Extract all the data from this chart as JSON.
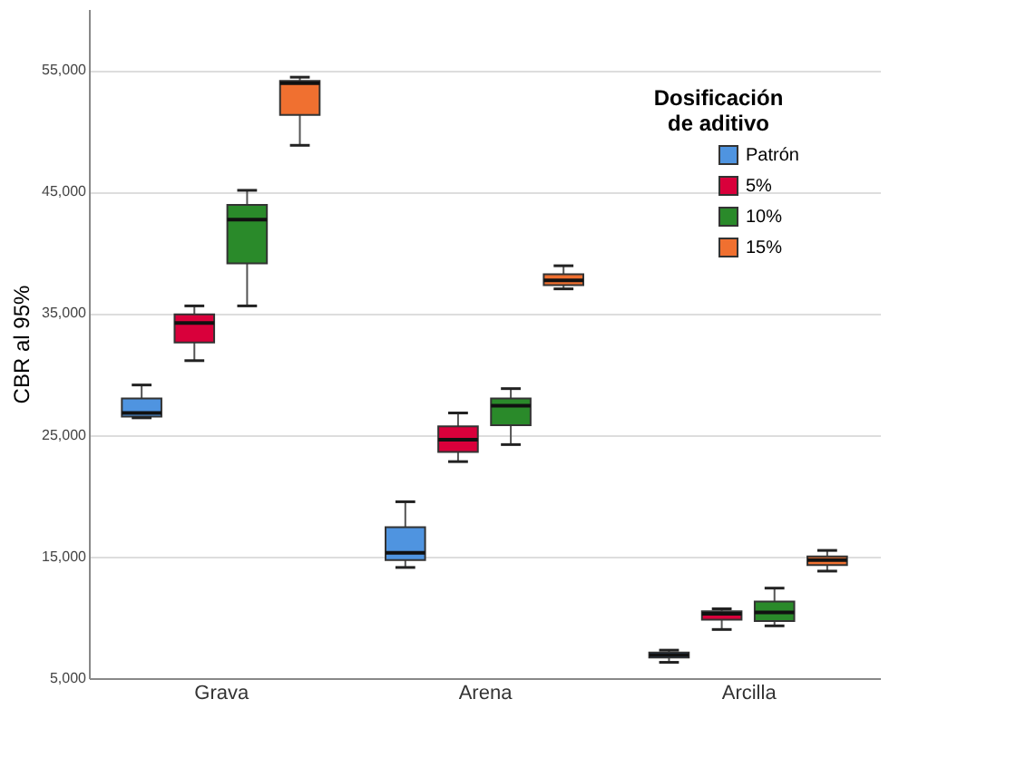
{
  "chart_data": {
    "type": "box",
    "ylabel": "CBR al 95%",
    "legend_title": "Dosificación de aditivo",
    "categories": [
      "Grava",
      "Arena",
      "Arcilla"
    ],
    "ylim": [
      5000,
      60000
    ],
    "yticks": [
      {
        "value": 5000,
        "label": "5,000"
      },
      {
        "value": 15000,
        "label": "15,000"
      },
      {
        "value": 25000,
        "label": "25,000"
      },
      {
        "value": 35000,
        "label": "35,000"
      },
      {
        "value": 45000,
        "label": "45,000"
      },
      {
        "value": 55000,
        "label": "55,000"
      }
    ],
    "grid": "y",
    "legend": "top right",
    "series": [
      {
        "name": "Patrón",
        "color": "#4f94e0",
        "boxes": [
          {
            "low": 26400,
            "q1": 26500,
            "median": 26800,
            "q3": 28000,
            "high": 29100
          },
          {
            "low": 14100,
            "q1": 14700,
            "median": 15300,
            "q3": 17400,
            "high": 19500
          },
          {
            "low": 6300,
            "q1": 6700,
            "median": 6900,
            "q3": 7100,
            "high": 7300
          }
        ]
      },
      {
        "name": "5%",
        "color": "#d9003b",
        "boxes": [
          {
            "low": 31100,
            "q1": 32600,
            "median": 34200,
            "q3": 34900,
            "high": 35600
          },
          {
            "low": 22800,
            "q1": 23600,
            "median": 24600,
            "q3": 25700,
            "high": 26800
          },
          {
            "low": 9000,
            "q1": 9800,
            "median": 10300,
            "q3": 10500,
            "high": 10700
          }
        ]
      },
      {
        "name": "10%",
        "color": "#2a8a2a",
        "boxes": [
          {
            "low": 35600,
            "q1": 39100,
            "median": 42700,
            "q3": 43900,
            "high": 45100
          },
          {
            "low": 24200,
            "q1": 25800,
            "median": 27400,
            "q3": 28000,
            "high": 28800
          },
          {
            "low": 9300,
            "q1": 9700,
            "median": 10400,
            "q3": 11300,
            "high": 12400
          }
        ]
      },
      {
        "name": "15%",
        "color": "#f07030",
        "boxes": [
          {
            "low": 48800,
            "q1": 51300,
            "median": 53900,
            "q3": 54100,
            "high": 54400
          },
          {
            "low": 37000,
            "q1": 37300,
            "median": 37700,
            "q3": 38200,
            "high": 38900
          },
          {
            "low": 13800,
            "q1": 14300,
            "median": 14700,
            "q3": 15000,
            "high": 15500
          }
        ]
      }
    ]
  }
}
